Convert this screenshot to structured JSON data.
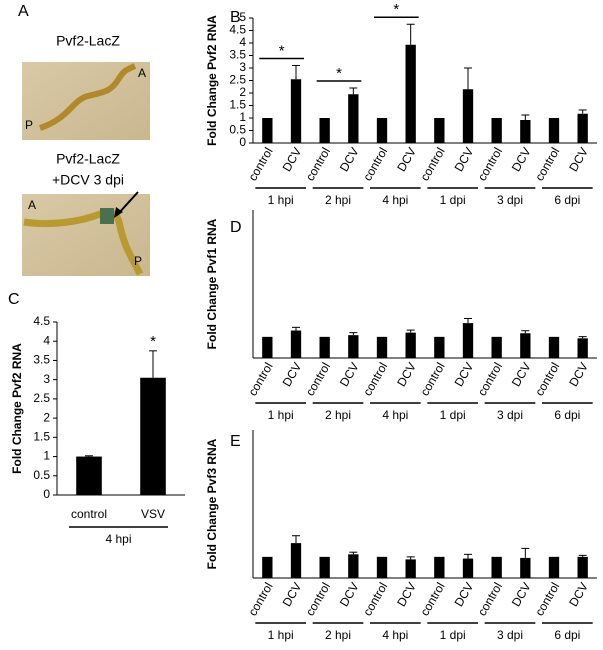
{
  "panel_a": {
    "panel": "A",
    "top_title": "Pvf2-LacZ",
    "top_anterior": "A",
    "top_posterior": "P",
    "bottom_title": [
      "Pvf2-LacZ",
      "+DCV 3 dpi"
    ],
    "bottom_anterior": "A",
    "bottom_posterior": "P"
  },
  "chart_data": [
    {
      "type": "bar",
      "panel": "B",
      "y_label": "Fold Change Pvf2 RNA",
      "color": "#000000",
      "categories": [
        "control",
        "DCV",
        "control",
        "DCV",
        "control",
        "DCV",
        "control",
        "DCV",
        "control",
        "DCV",
        "control",
        "DCV"
      ],
      "groups": [
        "1 hpi",
        "2 hpi",
        "4 hpi",
        "1 dpi",
        "3 dpi",
        "6 dpi"
      ],
      "values": [
        1,
        2.55,
        1,
        1.95,
        1,
        3.93,
        1,
        2.15,
        1,
        0.92,
        1,
        1.17
      ],
      "errors": [
        0,
        0.55,
        0,
        0.25,
        0,
        0.82,
        0,
        0.85,
        0,
        0.2,
        0,
        0.15
      ],
      "ylim": [
        0,
        5
      ],
      "yticks": [
        0,
        0.5,
        1,
        1.5,
        2,
        2.5,
        3,
        3.5,
        4,
        4.5,
        5
      ],
      "significance": [
        {
          "group": 0,
          "label": "*"
        },
        {
          "group": 1,
          "label": "*"
        },
        {
          "group": 2,
          "label": "*"
        }
      ]
    },
    {
      "type": "bar",
      "panel": "C",
      "y_label": "Fold Change Pvf2 RNA",
      "color": "#000000",
      "categories": [
        "control",
        "VSV"
      ],
      "groups": [
        "4 hpi"
      ],
      "values": [
        1,
        3.05
      ],
      "errors": [
        0.02,
        0.7
      ],
      "ylim": [
        0,
        4.5
      ],
      "yticks": [
        0,
        0.5,
        1,
        1.5,
        2,
        2.5,
        3,
        3.5,
        4,
        4.5
      ],
      "significance": [
        {
          "category": 1,
          "label": "*"
        }
      ]
    },
    {
      "type": "bar",
      "panel": "D",
      "y_label": "Fold Change Pvf1 RNA",
      "color": "#000000",
      "categories": [
        "control",
        "DCV",
        "control",
        "DCV",
        "control",
        "DCV",
        "control",
        "DCV",
        "control",
        "DCV",
        "control",
        "DCV"
      ],
      "groups": [
        "1 hpi",
        "2 hpi",
        "4 hpi",
        "1 dpi",
        "3 dpi",
        "6 dpi"
      ],
      "values": [
        1,
        1.3,
        1,
        1.08,
        1,
        1.2,
        1,
        1.65,
        1,
        1.17,
        1,
        0.93
      ],
      "errors": [
        0,
        0.15,
        0,
        0.12,
        0,
        0.12,
        0,
        0.22,
        0,
        0.12,
        0,
        0.08
      ],
      "ylim": [
        0,
        7
      ]
    },
    {
      "type": "bar",
      "panel": "E",
      "y_label": "Fold Change Pvf3 RNA",
      "color": "#000000",
      "categories": [
        "control",
        "DCV",
        "control",
        "DCV",
        "control",
        "DCV",
        "control",
        "DCV",
        "control",
        "DCV",
        "control",
        "DCV"
      ],
      "groups": [
        "1 hpi",
        "2 hpi",
        "4 hpi",
        "1 dpi",
        "3 dpi",
        "6 dpi"
      ],
      "values": [
        1,
        1.65,
        1,
        1.12,
        1,
        0.88,
        1,
        0.92,
        1,
        0.95,
        1,
        1.0
      ],
      "errors": [
        0,
        0.35,
        0,
        0.1,
        0,
        0.12,
        0,
        0.2,
        0,
        0.45,
        0,
        0.07
      ],
      "ylim": [
        0,
        7
      ]
    }
  ]
}
